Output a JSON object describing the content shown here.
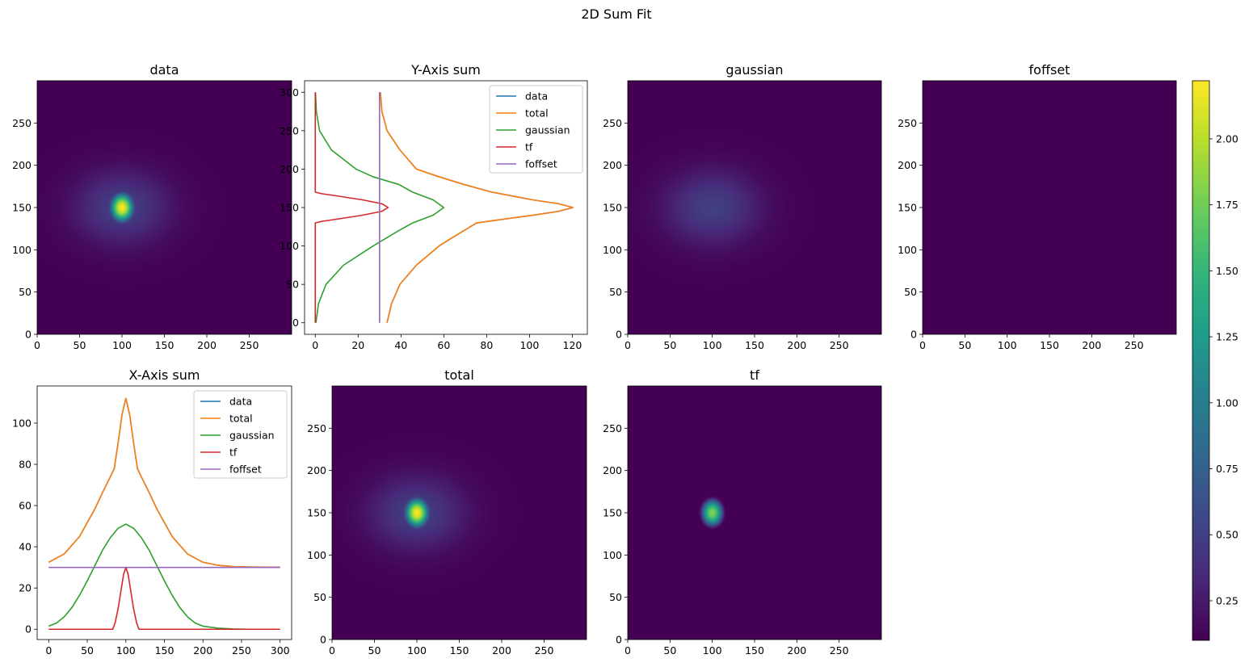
{
  "figure": {
    "suptitle": "2D Sum Fit"
  },
  "colors": {
    "data": "#1f77b4",
    "total": "#ff7f0e",
    "gaussian": "#2ca02c",
    "tf": "#d62728",
    "foffset": "#9467bd",
    "viridis": [
      "#440154",
      "#482878",
      "#3e4989",
      "#31688e",
      "#26828e",
      "#1f9e89",
      "#35b779",
      "#6ece58",
      "#b5de2b",
      "#fde725"
    ]
  },
  "chart_data": [
    {
      "id": "img_data",
      "type": "heatmap",
      "title": "data",
      "xlim": [
        0,
        300
      ],
      "ylim": [
        0,
        300
      ],
      "xticks": [
        0,
        50,
        100,
        150,
        200,
        250
      ],
      "yticks": [
        0,
        50,
        100,
        150,
        200,
        250
      ],
      "components": [
        "gaussian",
        "tf",
        "foffset"
      ]
    },
    {
      "id": "ysum",
      "type": "line",
      "title": "Y-Axis sum",
      "orientation": "vertical",
      "xlim": [
        -5,
        127
      ],
      "ylim": [
        -15,
        315
      ],
      "xticks": [
        0,
        20,
        40,
        60,
        80,
        100,
        120
      ],
      "yticks": [
        0,
        50,
        100,
        150,
        200,
        250,
        300
      ],
      "legend": "upper right",
      "series": [
        {
          "name": "data",
          "color": "#1f77b4",
          "y": [
            0,
            25,
            50,
            75,
            100,
            110,
            120,
            130,
            140,
            145,
            150,
            155,
            160,
            170,
            180,
            190,
            200,
            225,
            250,
            275,
            300
          ],
          "x": [
            33.5,
            35.6,
            39.5,
            47.2,
            57.8,
            63.5,
            69.4,
            75.3,
            101.5,
            113.5,
            120.3,
            113.5,
            101.5,
            82.5,
            69.4,
            57.8,
            47.2,
            39.5,
            33.5,
            31.1,
            30.4
          ]
        },
        {
          "name": "total",
          "color": "#ff7f0e",
          "y": [
            0,
            25,
            50,
            75,
            100,
            110,
            120,
            130,
            140,
            145,
            150,
            155,
            160,
            170,
            180,
            190,
            200,
            225,
            250,
            275,
            300
          ],
          "x": [
            33.5,
            35.6,
            39.5,
            47.2,
            57.8,
            63.5,
            69.4,
            75.3,
            101.5,
            113.5,
            120.3,
            113.5,
            101.5,
            82.5,
            69.4,
            57.8,
            47.2,
            39.5,
            33.5,
            31.1,
            30.4
          ]
        },
        {
          "name": "gaussian",
          "color": "#2ca02c",
          "y": [
            0,
            25,
            50,
            75,
            100,
            110,
            120,
            130,
            140,
            150,
            160,
            170,
            180,
            190,
            200,
            225,
            250,
            275,
            300
          ],
          "x": [
            0.3,
            1.5,
            5.0,
            13.2,
            27.0,
            33.0,
            39.0,
            45.5,
            55.0,
            60.0,
            55.0,
            45.5,
            39.0,
            27.0,
            19.0,
            7.5,
            2.0,
            0.5,
            0.1
          ]
        },
        {
          "name": "tf",
          "color": "#d62728",
          "y": [
            0,
            100,
            130,
            132,
            135,
            140,
            145,
            150,
            155,
            160,
            165,
            168,
            170,
            200,
            300
          ],
          "x": [
            0,
            0,
            0,
            3.0,
            10.5,
            22.0,
            31.0,
            34.0,
            31.0,
            22.0,
            10.5,
            3.0,
            0,
            0,
            0
          ]
        },
        {
          "name": "foffset",
          "color": "#9467bd",
          "y": [
            0,
            300
          ],
          "x": [
            30.0,
            30.0
          ]
        }
      ]
    },
    {
      "id": "img_gaussian",
      "type": "heatmap",
      "title": "gaussian",
      "xlim": [
        0,
        300
      ],
      "ylim": [
        0,
        300
      ],
      "xticks": [
        0,
        50,
        100,
        150,
        200,
        250
      ],
      "yticks": [
        0,
        50,
        100,
        150,
        200,
        250
      ],
      "components": [
        "gaussian",
        "foffset"
      ]
    },
    {
      "id": "img_foffset",
      "type": "heatmap",
      "title": "foffset",
      "xlim": [
        0,
        300
      ],
      "ylim": [
        0,
        300
      ],
      "xticks": [
        0,
        50,
        100,
        150,
        200,
        250
      ],
      "yticks": [
        0,
        50,
        100,
        150,
        200,
        250
      ],
      "components": [
        "foffset"
      ]
    },
    {
      "id": "xsum",
      "type": "line",
      "title": "X-Axis sum",
      "orientation": "horizontal",
      "xlim": [
        -15,
        315
      ],
      "ylim": [
        -5,
        118
      ],
      "xticks": [
        0,
        50,
        100,
        150,
        200,
        250,
        300
      ],
      "yticks": [
        0,
        20,
        40,
        60,
        80,
        100
      ],
      "legend": "upper right",
      "series": [
        {
          "name": "data",
          "color": "#1f77b4",
          "x": [
            0,
            20,
            40,
            60,
            70,
            80,
            85,
            90,
            95,
            100,
            105,
            110,
            115,
            120,
            130,
            140,
            160,
            180,
            200,
            220,
            240,
            260,
            300
          ],
          "y": [
            32.5,
            36.5,
            45.0,
            58.5,
            66.5,
            74.0,
            78.0,
            90.5,
            104.0,
            112.0,
            104.0,
            90.5,
            78.0,
            74.0,
            66.5,
            58.5,
            45.0,
            36.5,
            32.5,
            31.0,
            30.4,
            30.2,
            30.1
          ]
        },
        {
          "name": "total",
          "color": "#ff7f0e",
          "x": [
            0,
            20,
            40,
            60,
            70,
            80,
            85,
            90,
            95,
            100,
            105,
            110,
            115,
            120,
            130,
            140,
            160,
            180,
            200,
            220,
            240,
            260,
            300
          ],
          "y": [
            32.5,
            36.5,
            45.0,
            58.5,
            66.5,
            74.0,
            78.0,
            90.5,
            104.0,
            112.0,
            104.0,
            90.5,
            78.0,
            74.0,
            66.5,
            58.5,
            45.0,
            36.5,
            32.5,
            31.0,
            30.4,
            30.2,
            30.1
          ]
        },
        {
          "name": "gaussian",
          "color": "#2ca02c",
          "x": [
            0,
            10,
            20,
            30,
            40,
            50,
            60,
            70,
            80,
            90,
            100,
            110,
            120,
            130,
            140,
            150,
            160,
            170,
            180,
            190,
            200,
            220,
            240,
            260,
            300
          ],
          "y": [
            1.5,
            3.0,
            6.0,
            10.5,
            16.5,
            23.5,
            31.0,
            38.5,
            44.5,
            49.0,
            51.0,
            49.0,
            44.5,
            38.5,
            31.0,
            23.5,
            16.5,
            10.5,
            6.0,
            3.0,
            1.5,
            0.5,
            0.1,
            0.0,
            0.0
          ]
        },
        {
          "name": "tf",
          "color": "#d62728",
          "x": [
            0,
            80,
            83,
            86,
            90,
            94,
            97,
            100,
            103,
            106,
            110,
            114,
            117,
            120,
            300
          ],
          "y": [
            0,
            0,
            0,
            3.0,
            10.0,
            19.5,
            26.5,
            30.0,
            26.5,
            19.5,
            10.0,
            3.0,
            0,
            0,
            0
          ]
        },
        {
          "name": "foffset",
          "color": "#9467bd",
          "x": [
            0,
            300
          ],
          "y": [
            30.0,
            30.0
          ]
        }
      ]
    },
    {
      "id": "img_total",
      "type": "heatmap",
      "title": "total",
      "xlim": [
        0,
        300
      ],
      "ylim": [
        0,
        300
      ],
      "xticks": [
        0,
        50,
        100,
        150,
        200,
        250
      ],
      "yticks": [
        0,
        50,
        100,
        150,
        200,
        250
      ],
      "components": [
        "gaussian",
        "tf",
        "foffset"
      ]
    },
    {
      "id": "img_tf",
      "type": "heatmap",
      "title": "tf",
      "xlim": [
        0,
        300
      ],
      "ylim": [
        0,
        300
      ],
      "xticks": [
        0,
        50,
        100,
        150,
        200,
        250
      ],
      "yticks": [
        0,
        50,
        100,
        150,
        200,
        250
      ],
      "components": [
        "tf",
        "foffset"
      ]
    },
    {
      "id": "colorbar",
      "type": "colorbar",
      "vmin": 0.1,
      "vmax": 2.22,
      "ticks": [
        0.25,
        0.5,
        0.75,
        1.0,
        1.25,
        1.5,
        1.75,
        2.0
      ],
      "tick_labels": [
        "0.25",
        "0.50",
        "0.75",
        "1.00",
        "1.25",
        "1.50",
        "1.75",
        "2.00"
      ]
    }
  ],
  "model": {
    "center_x": 100,
    "center_y": 150,
    "gaussian": {
      "amplitude": 0.4,
      "sigma_x": 39,
      "sigma_y": 30
    },
    "tf": {
      "amplitude": 1.72,
      "radius_x": 16,
      "radius_y": 20
    },
    "foffset": 0.1
  }
}
